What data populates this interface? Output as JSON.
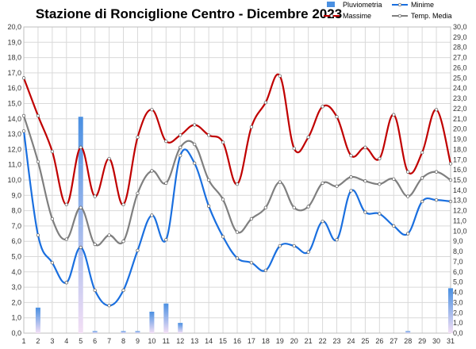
{
  "chart_data": {
    "type": "line",
    "title": "Stazione di Ronciglione Centro - Dicembre 2023",
    "x": [
      1,
      2,
      3,
      4,
      5,
      6,
      7,
      8,
      9,
      10,
      11,
      12,
      13,
      14,
      15,
      16,
      17,
      18,
      19,
      20,
      21,
      22,
      23,
      24,
      25,
      26,
      27,
      28,
      29,
      30,
      31
    ],
    "x_tick_labels": [
      "1",
      "2",
      "3",
      "4",
      "5",
      "6",
      "7",
      "8",
      "9",
      "10",
      "11",
      "12",
      "13",
      "14",
      "15",
      "16",
      "17",
      "18",
      "19",
      "20",
      "21",
      "22",
      "23",
      "24",
      "25",
      "26",
      "27",
      "28",
      "29",
      "30",
      "31"
    ],
    "y_left": {
      "min": 0,
      "max": 20,
      "step": 1,
      "tick_labels": [
        "0,0",
        "1,0",
        "2,0",
        "3,0",
        "4,0",
        "5,0",
        "6,0",
        "7,0",
        "8,0",
        "9,0",
        "10,0",
        "11,0",
        "12,0",
        "13,0",
        "14,0",
        "15,0",
        "16,0",
        "17,0",
        "18,0",
        "19,0",
        "20,0"
      ]
    },
    "y_right": {
      "min": 0,
      "max": 30,
      "step": 1,
      "tick_labels": [
        "0,0",
        "1,0",
        "2,0",
        "3,0",
        "4,0",
        "5,0",
        "6,0",
        "7,0",
        "8,0",
        "9,0",
        "10,0",
        "11,0",
        "12,0",
        "13,0",
        "14,0",
        "15,0",
        "16,0",
        "17,0",
        "18,0",
        "19,0",
        "20,0",
        "21,0",
        "22,0",
        "23,0",
        "24,0",
        "25,0",
        "26,0",
        "27,0",
        "28,0",
        "29,0",
        "30,0"
      ]
    },
    "grid": true,
    "legend_position": "top-right",
    "series": [
      {
        "name": "Pluviometria",
        "kind": "bar",
        "axis": "right",
        "color": "#4a90e2",
        "values": [
          0,
          2.5,
          0,
          0,
          21.2,
          0.2,
          0,
          0.2,
          0.2,
          2.1,
          2.9,
          1.0,
          0,
          0,
          0,
          0,
          0,
          0,
          0,
          0,
          0,
          0,
          0,
          0,
          0,
          0,
          0,
          0.2,
          0,
          0,
          4.4
        ]
      },
      {
        "name": "Minime",
        "kind": "line",
        "axis": "left",
        "color": "#1a6fdf",
        "values": [
          13.2,
          6.4,
          4.6,
          3.3,
          5.6,
          2.8,
          1.8,
          2.8,
          5.4,
          7.7,
          6.1,
          11.6,
          11.1,
          8.3,
          6.3,
          4.9,
          4.6,
          4.1,
          5.7,
          5.7,
          5.3,
          7.3,
          6.1,
          9.3,
          7.9,
          7.8,
          7.0,
          6.5,
          8.6,
          8.7,
          8.6
        ]
      },
      {
        "name": "Massime",
        "kind": "line",
        "axis": "right",
        "color": "#c00000",
        "values": [
          25.0,
          21.3,
          17.8,
          12.6,
          18.2,
          13.4,
          17.1,
          12.6,
          19.2,
          21.9,
          18.8,
          19.4,
          20.4,
          19.4,
          18.7,
          14.6,
          20.2,
          22.6,
          25.2,
          18.1,
          19.2,
          22.2,
          21.2,
          17.4,
          18.2,
          17.1,
          21.4,
          15.8,
          17.7,
          21.9,
          16.6
        ]
      },
      {
        "name": "Temp. Media",
        "kind": "line",
        "axis": "right",
        "color": "#7f7f7f",
        "values": [
          21.3,
          16.8,
          11.2,
          9.2,
          12.3,
          8.7,
          9.6,
          9.0,
          13.7,
          15.9,
          14.7,
          18.2,
          18.5,
          15.0,
          13.1,
          9.9,
          11.2,
          12.3,
          14.8,
          12.3,
          12.4,
          14.7,
          14.4,
          15.3,
          14.9,
          14.6,
          15.1,
          13.4,
          15.2,
          15.8,
          15.0
        ]
      }
    ]
  }
}
